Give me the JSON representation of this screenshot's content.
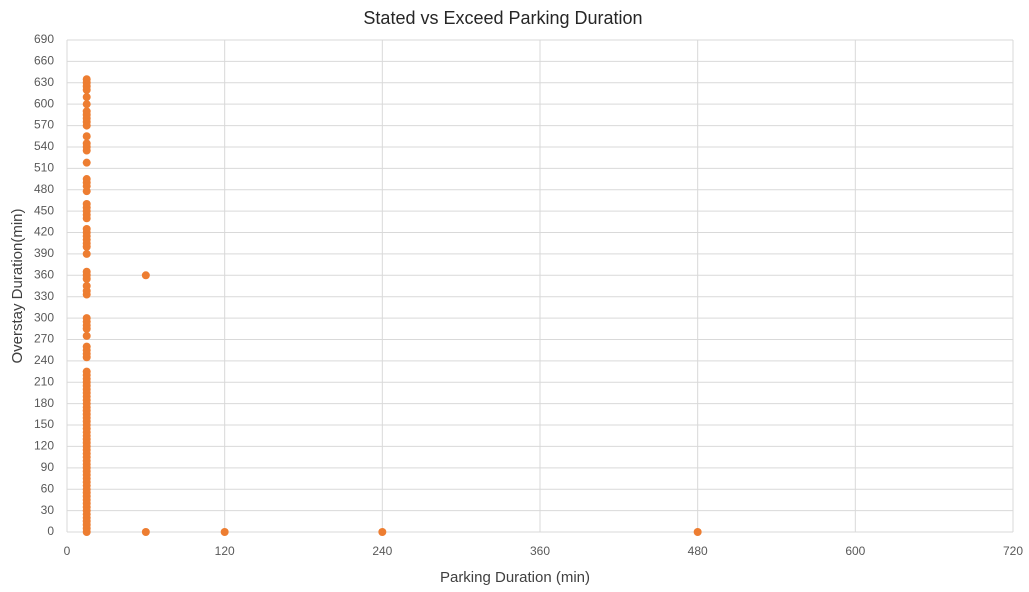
{
  "chart_data": {
    "type": "scatter",
    "title": "Stated vs Exceed Parking Duration",
    "x_label": "Parking Duration (min)",
    "y_label": "Overstay Duration(min)",
    "color": "#ed7d31",
    "grid": true,
    "xlim": [
      0,
      720
    ],
    "xticks": [
      0,
      120,
      240,
      360,
      480,
      600,
      720
    ],
    "ylim": [
      0,
      690
    ],
    "yticks": [
      0,
      30,
      60,
      90,
      120,
      150,
      180,
      210,
      240,
      270,
      300,
      330,
      360,
      390,
      420,
      450,
      480,
      510,
      540,
      570,
      600,
      630,
      660,
      690
    ],
    "x": [
      15,
      15,
      15,
      15,
      15,
      15,
      15,
      15,
      15,
      15,
      15,
      15,
      15,
      15,
      15,
      15,
      15,
      15,
      15,
      15,
      15,
      15,
      15,
      15,
      15,
      15,
      15,
      15,
      15,
      15,
      15,
      15,
      15,
      15,
      15,
      15,
      15,
      15,
      15,
      15,
      15,
      15,
      15,
      15,
      15,
      15,
      15,
      15,
      15,
      15,
      15,
      15,
      15,
      15,
      15,
      15,
      15,
      15,
      15,
      15,
      15,
      15,
      15,
      15,
      15,
      15,
      15,
      15,
      15,
      15,
      15,
      15,
      15,
      15,
      15,
      15,
      15,
      15,
      15,
      15,
      15,
      15,
      15,
      15,
      15,
      15,
      15,
      15,
      15,
      15,
      15,
      15,
      15,
      60,
      60,
      120,
      240,
      480
    ],
    "values": [
      0,
      5,
      10,
      15,
      20,
      25,
      30,
      35,
      40,
      45,
      50,
      55,
      60,
      65,
      70,
      75,
      80,
      85,
      90,
      95,
      100,
      105,
      110,
      115,
      120,
      125,
      130,
      135,
      140,
      145,
      150,
      155,
      160,
      165,
      170,
      175,
      180,
      185,
      190,
      195,
      200,
      205,
      210,
      215,
      220,
      225,
      245,
      250,
      255,
      260,
      275,
      285,
      290,
      295,
      300,
      333,
      338,
      345,
      355,
      360,
      365,
      390,
      400,
      405,
      410,
      415,
      420,
      425,
      440,
      445,
      450,
      455,
      460,
      478,
      485,
      490,
      495,
      518,
      535,
      540,
      545,
      555,
      570,
      575,
      580,
      585,
      590,
      600,
      610,
      620,
      625,
      630,
      635,
      360,
      0,
      0,
      0,
      0
    ]
  }
}
